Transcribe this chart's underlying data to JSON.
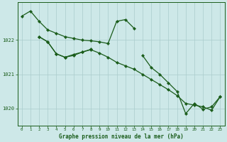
{
  "title": "Graphe pression niveau de la mer (hPa)",
  "bg_color": "#cde8e8",
  "grid_color": "#aacccc",
  "line_color": "#1a5c1a",
  "xlim": [
    -0.5,
    23.5
  ],
  "ylim": [
    1019.5,
    1023.1
  ],
  "yticks": [
    1020,
    1021,
    1022
  ],
  "xticks": [
    0,
    1,
    2,
    3,
    4,
    5,
    6,
    7,
    8,
    9,
    10,
    11,
    12,
    13,
    14,
    15,
    16,
    17,
    18,
    19,
    20,
    21,
    22,
    23
  ],
  "line1_x": [
    0,
    1,
    2,
    3,
    4,
    5,
    6,
    7,
    8,
    9,
    10,
    11,
    12,
    13
  ],
  "line1_y": [
    1022.7,
    1022.85,
    1022.55,
    1022.3,
    1022.2,
    1022.1,
    1022.05,
    1022.0,
    1021.98,
    1021.95,
    1021.9,
    1022.55,
    1022.6,
    1022.35
  ],
  "line2_x": [
    2,
    3,
    4,
    5,
    6,
    7,
    8
  ],
  "line2_y": [
    1022.1,
    1021.95,
    1021.6,
    1021.5,
    1021.58,
    1021.65,
    1021.73
  ],
  "line3_x": [
    2,
    3,
    4,
    5,
    6,
    7,
    8,
    9,
    10,
    11,
    12,
    13,
    14,
    15,
    16,
    17,
    18,
    19,
    20,
    21,
    22,
    23
  ],
  "line3_y": [
    1022.1,
    1021.95,
    1021.6,
    1021.5,
    1021.55,
    1021.65,
    1021.72,
    1021.62,
    1021.5,
    1021.35,
    1021.25,
    1021.15,
    1021.0,
    1020.85,
    1020.7,
    1020.55,
    1020.38,
    1020.15,
    1020.1,
    1020.05,
    1019.95,
    1020.35
  ],
  "line4_x": [
    14,
    15,
    16,
    17,
    18,
    19,
    20,
    21,
    22,
    23
  ],
  "line4_y": [
    1021.55,
    1021.2,
    1021.0,
    1020.75,
    1020.5,
    1019.85,
    1020.15,
    1019.98,
    1020.05,
    1020.35
  ]
}
